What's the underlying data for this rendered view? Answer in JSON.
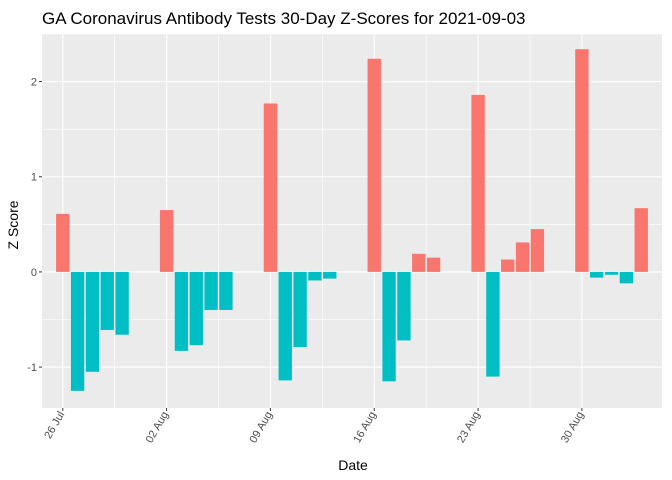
{
  "chart_data": {
    "type": "bar",
    "title": "GA Coronavirus Antibody Tests 30-Day Z-Scores for 2021-09-03",
    "xlabel": "Date",
    "ylabel": "Z Score",
    "ylim": [
      -1.43,
      2.5
    ],
    "y_ticks": [
      -1,
      0,
      1,
      2
    ],
    "x_ticks": [
      {
        "date": "2021-07-26",
        "label": "26 Jul"
      },
      {
        "date": "2021-08-02",
        "label": "02 Aug"
      },
      {
        "date": "2021-08-09",
        "label": "09 Aug"
      },
      {
        "date": "2021-08-16",
        "label": "16 Aug"
      },
      {
        "date": "2021-08-23",
        "label": "23 Aug"
      },
      {
        "date": "2021-08-30",
        "label": "30 Aug"
      }
    ],
    "grid": true,
    "legend": "none",
    "colors": {
      "positive": "#F8766D",
      "negative": "#00BFC4",
      "panel": "#EBEBEB",
      "grid": "#FFFFFF"
    },
    "x": [
      "2021-07-26",
      "2021-07-27",
      "2021-07-28",
      "2021-07-29",
      "2021-07-30",
      "2021-08-02",
      "2021-08-03",
      "2021-08-04",
      "2021-08-05",
      "2021-08-06",
      "2021-08-09",
      "2021-08-10",
      "2021-08-11",
      "2021-08-12",
      "2021-08-13",
      "2021-08-16",
      "2021-08-17",
      "2021-08-18",
      "2021-08-19",
      "2021-08-20",
      "2021-08-23",
      "2021-08-24",
      "2021-08-25",
      "2021-08-26",
      "2021-08-27",
      "2021-08-30",
      "2021-08-31",
      "2021-09-01",
      "2021-09-02",
      "2021-09-03"
    ],
    "values": [
      0.61,
      -1.25,
      -1.05,
      -0.61,
      -0.66,
      0.65,
      -0.83,
      -0.77,
      -0.4,
      -0.4,
      1.77,
      -1.14,
      -0.79,
      -0.09,
      -0.07,
      2.24,
      -1.15,
      -0.72,
      0.19,
      0.15,
      1.86,
      -1.1,
      0.13,
      0.31,
      0.45,
      2.34,
      -0.06,
      -0.03,
      -0.12,
      0.67
    ]
  }
}
